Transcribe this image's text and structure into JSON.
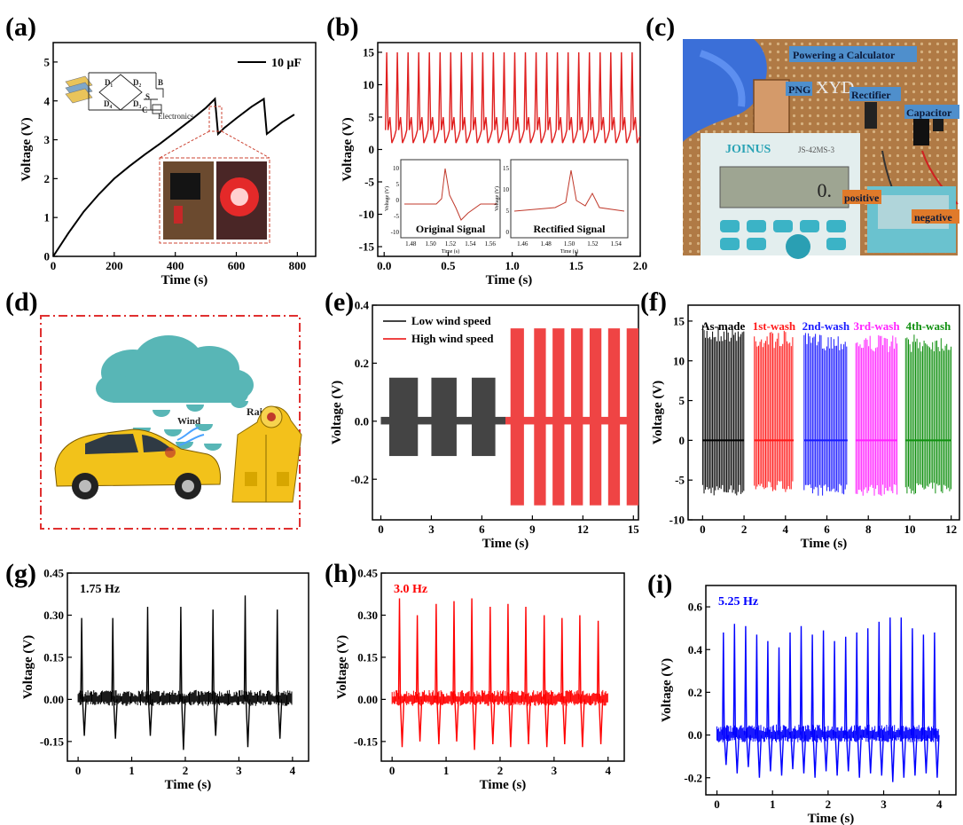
{
  "panels": [
    "(a)",
    "(b)",
    "(c)",
    "(d)",
    "(e)",
    "(f)",
    "(g)",
    "(h)",
    "(i)"
  ],
  "chart_data": [
    {
      "id": "a",
      "type": "line",
      "xlabel": "Time (s)",
      "ylabel": "Voltage (V)",
      "xlim": [
        0,
        860
      ],
      "ylim": [
        0,
        5.5
      ],
      "xticks": [
        "0",
        "200",
        "400",
        "600",
        "800"
      ],
      "yticks": [
        "0",
        "1",
        "2",
        "3",
        "4",
        "5"
      ],
      "legend": "top-right",
      "series": [
        {
          "name": "10 μF",
          "color": "#000000",
          "x": [
            0,
            50,
            100,
            150,
            200,
            250,
            300,
            350,
            400,
            450,
            500,
            530,
            540,
            560,
            600,
            650,
            690,
            700,
            750,
            790
          ],
          "y": [
            0,
            0.6,
            1.15,
            1.6,
            2.0,
            2.32,
            2.62,
            2.9,
            3.2,
            3.5,
            3.82,
            4.05,
            3.15,
            3.3,
            3.55,
            3.85,
            4.05,
            3.15,
            3.45,
            3.65
          ]
        }
      ],
      "inset_labels": {
        "d1": "D₁",
        "d2": "D₂",
        "d3": "D₃",
        "d4": "D₄",
        "s": "S",
        "b": "B",
        "c": "C",
        "electronics": "Electronics"
      }
    },
    {
      "id": "b",
      "type": "line",
      "xlabel": "Time (s)",
      "ylabel": "Voltage (V)",
      "xlim": [
        -0.05,
        2.0
      ],
      "ylim": [
        -16.5,
        16.5
      ],
      "xticks": [
        "0.0",
        "0.5",
        "1.0",
        "1.5",
        "2.0"
      ],
      "yticks": [
        "15",
        "10",
        "5",
        "0",
        "-5",
        "-10",
        "-15"
      ],
      "color": "#e02020",
      "peak_count": 24,
      "peak_value": 15,
      "baseline": 1,
      "insets": [
        {
          "title": "Original Signal",
          "xlabel": "Time (s)",
          "ylabel": "Voltage (V)",
          "xticks": [
            "1.48",
            "1.50",
            "1.52",
            "1.54",
            "1.56"
          ],
          "yticks": [
            "10",
            "5",
            "0",
            "-5",
            "-10"
          ]
        },
        {
          "title": "Rectified Signal",
          "xlabel": "Time (s)",
          "ylabel": "Voltage (V)",
          "xticks": [
            "1.46",
            "1.48",
            "1.50",
            "1.52",
            "1.54"
          ],
          "yticks": [
            "15",
            "10",
            "5",
            "0"
          ]
        }
      ]
    },
    {
      "id": "e",
      "type": "bar",
      "xlabel": "Time (s)",
      "ylabel": "Voltage (V)",
      "xlim": [
        -0.5,
        15.3
      ],
      "ylim": [
        -0.34,
        0.4
      ],
      "xticks": [
        "0",
        "3",
        "6",
        "9",
        "12",
        "15"
      ],
      "yticks": [
        "0.4",
        "0.2",
        "0.0",
        "-0.2"
      ],
      "legend": "top-left",
      "series": [
        {
          "name": "Low wind speed",
          "color": "#444444",
          "max": 0.15,
          "min": -0.12,
          "pulses": [
            [
              0.5,
              2.2
            ],
            [
              3.0,
              4.5
            ],
            [
              5.4,
              6.8
            ]
          ]
        },
        {
          "name": "High wind speed",
          "color": "#ef4444",
          "max": 0.32,
          "min": -0.29,
          "pulses": [
            [
              7.7,
              8.5
            ],
            [
              9.1,
              9.8
            ],
            [
              10.2,
              10.9
            ],
            [
              11.3,
              12.0
            ],
            [
              12.4,
              13.1
            ],
            [
              13.5,
              14.2
            ],
            [
              14.6,
              15.3
            ]
          ]
        }
      ],
      "baseline_band": [
        -0.005,
        0.015
      ]
    },
    {
      "id": "f",
      "type": "line",
      "xlabel": "Time (s)",
      "ylabel": "Voltage (V)",
      "xlim": [
        -0.7,
        12.4
      ],
      "ylim": [
        -10,
        17
      ],
      "xticks": [
        "0",
        "2",
        "4",
        "6",
        "8",
        "10",
        "12"
      ],
      "yticks": [
        "15",
        "10",
        "5",
        "0",
        "-5",
        "-10"
      ],
      "series": [
        {
          "name": "As-made",
          "color": "#000000",
          "x": [
            0,
            2.0
          ],
          "max": 14.5,
          "min": -7
        },
        {
          "name": "1st-wash",
          "color": "#ff1a1a",
          "x": [
            2.5,
            4.4
          ],
          "max": 13.8,
          "min": -6.5
        },
        {
          "name": "2nd-wash",
          "color": "#1a1aff",
          "x": [
            4.9,
            7.0
          ],
          "max": 13.5,
          "min": -7
        },
        {
          "name": "3rd-wash",
          "color": "#ff22ff",
          "x": [
            7.4,
            9.4
          ],
          "max": 13.3,
          "min": -7
        },
        {
          "name": "4th-wash",
          "color": "#109010",
          "x": [
            9.8,
            12.0
          ],
          "max": 13.3,
          "min": -6.8
        }
      ]
    },
    {
      "id": "g",
      "type": "line",
      "title": "1.75 Hz",
      "xlabel": "Time (s)",
      "ylabel": "Voltage (V)",
      "xlim": [
        -0.2,
        4.3
      ],
      "ylim": [
        -0.22,
        0.45
      ],
      "xticks": [
        "0",
        "1",
        "2",
        "3",
        "4"
      ],
      "yticks": [
        "0.45",
        "0.30",
        "0.15",
        "0.00",
        "-0.15"
      ],
      "color": "#000000",
      "peaks_x": [
        0.05,
        0.63,
        1.28,
        1.9,
        2.5,
        3.1,
        3.7
      ],
      "peaks_max": [
        0.29,
        0.29,
        0.33,
        0.33,
        0.32,
        0.37,
        0.32
      ],
      "peaks_min": [
        -0.13,
        -0.14,
        -0.13,
        -0.18,
        -0.13,
        -0.17,
        -0.14
      ]
    },
    {
      "id": "h",
      "type": "line",
      "title": "3.0 Hz",
      "xlabel": "Time (s)",
      "ylabel": "Voltage (V)",
      "xlim": [
        -0.2,
        4.3
      ],
      "ylim": [
        -0.22,
        0.45
      ],
      "xticks": [
        "0",
        "1",
        "2",
        "3",
        "4"
      ],
      "yticks": [
        "0.45",
        "0.30",
        "0.15",
        "0.00",
        "-0.15"
      ],
      "color": "#ff0000",
      "peaks_x": [
        0.12,
        0.45,
        0.8,
        1.13,
        1.46,
        1.8,
        2.13,
        2.46,
        2.8,
        3.13,
        3.46,
        3.8
      ],
      "peaks_max": [
        0.36,
        0.3,
        0.34,
        0.35,
        0.36,
        0.33,
        0.34,
        0.33,
        0.3,
        0.29,
        0.3,
        0.28
      ],
      "peaks_min": [
        -0.17,
        -0.15,
        -0.16,
        -0.15,
        -0.18,
        -0.16,
        -0.17,
        -0.16,
        -0.17,
        -0.16,
        -0.17,
        -0.16
      ]
    },
    {
      "id": "i",
      "type": "line",
      "title": "5.25 Hz",
      "xlabel": "Time (s)",
      "ylabel": "Voltage (V)",
      "xlim": [
        -0.2,
        4.3
      ],
      "ylim": [
        -0.28,
        0.7
      ],
      "xticks": [
        "0",
        "1",
        "2",
        "3",
        "4"
      ],
      "yticks": [
        "0.6",
        "0.4",
        "0.2",
        "0.0",
        "-0.2"
      ],
      "color": "#0000ff",
      "peaks_x": [
        0.1,
        0.3,
        0.5,
        0.7,
        0.9,
        1.1,
        1.3,
        1.5,
        1.7,
        1.9,
        2.1,
        2.3,
        2.5,
        2.7,
        2.9,
        3.1,
        3.3,
        3.5,
        3.7,
        3.9
      ],
      "peaks_max": [
        0.48,
        0.52,
        0.51,
        0.47,
        0.44,
        0.41,
        0.48,
        0.51,
        0.47,
        0.49,
        0.44,
        0.46,
        0.48,
        0.5,
        0.53,
        0.55,
        0.55,
        0.5,
        0.47,
        0.48
      ],
      "peaks_min": [
        -0.14,
        -0.18,
        -0.15,
        -0.2,
        -0.17,
        -0.19,
        -0.16,
        -0.18,
        -0.2,
        -0.17,
        -0.19,
        -0.17,
        -0.2,
        -0.18,
        -0.19,
        -0.22,
        -0.2,
        -0.19,
        -0.18,
        -0.2
      ]
    }
  ],
  "photo_c": {
    "labels": [
      "Powering a Calculator",
      "PNG",
      "Rectifier",
      "Capacitor",
      "positive",
      "negative"
    ],
    "brand": "JOINUS",
    "model": "JS-42MS-3",
    "board_text": "XYD",
    "display": "0."
  },
  "illustration_d": {
    "labels": [
      "Rain",
      "Wind"
    ]
  }
}
